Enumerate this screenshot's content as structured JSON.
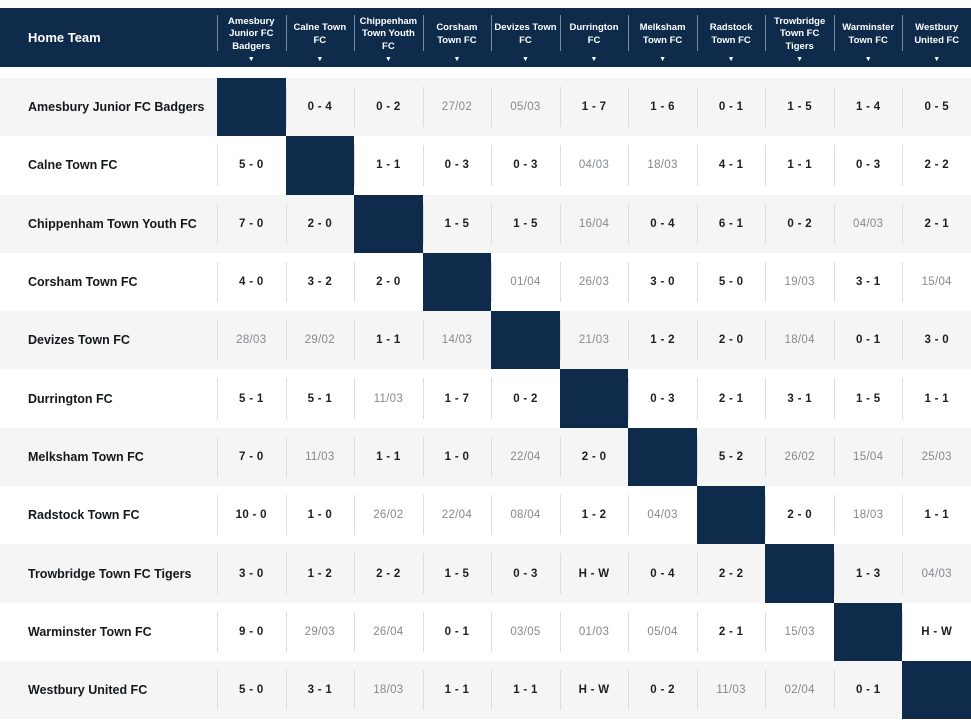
{
  "colors": {
    "header_bg": "#0e2b4c",
    "diagonal_bg": "#0e2b4c",
    "row_alt_bg": "#f5f5f5",
    "score_text": "#1d2023",
    "date_text": "#85898d"
  },
  "header": {
    "home_team_label": "Home Team",
    "sort_icon": "▼",
    "columns": [
      "Amesbury Junior FC Badgers",
      "Calne Town FC",
      "Chippenham Town Youth FC",
      "Corsham Town FC",
      "Devizes Town FC",
      "Durrington FC",
      "Melksham Town FC",
      "Radstock Town FC",
      "Trowbridge Town FC Tigers",
      "Warminster Town FC",
      "Westbury United FC"
    ]
  },
  "rows": [
    {
      "team": "Amesbury Junior FC Badgers",
      "cells": [
        {
          "type": "self",
          "value": ""
        },
        {
          "type": "score",
          "value": "0 - 4"
        },
        {
          "type": "score",
          "value": "0 - 2"
        },
        {
          "type": "date",
          "value": "27/02"
        },
        {
          "type": "date",
          "value": "05/03"
        },
        {
          "type": "score",
          "value": "1 - 7"
        },
        {
          "type": "score",
          "value": "1 - 6"
        },
        {
          "type": "score",
          "value": "0 - 1"
        },
        {
          "type": "score",
          "value": "1 - 5"
        },
        {
          "type": "score",
          "value": "1 - 4"
        },
        {
          "type": "score",
          "value": "0 - 5"
        }
      ]
    },
    {
      "team": "Calne Town FC",
      "cells": [
        {
          "type": "score",
          "value": "5 - 0"
        },
        {
          "type": "self",
          "value": ""
        },
        {
          "type": "score",
          "value": "1 - 1"
        },
        {
          "type": "score",
          "value": "0 - 3"
        },
        {
          "type": "score",
          "value": "0 - 3"
        },
        {
          "type": "date",
          "value": "04/03"
        },
        {
          "type": "date",
          "value": "18/03"
        },
        {
          "type": "score",
          "value": "4 - 1"
        },
        {
          "type": "score",
          "value": "1 - 1"
        },
        {
          "type": "score",
          "value": "0 - 3"
        },
        {
          "type": "score",
          "value": "2 - 2"
        }
      ]
    },
    {
      "team": "Chippenham Town Youth FC",
      "cells": [
        {
          "type": "score",
          "value": "7 - 0"
        },
        {
          "type": "score",
          "value": "2 - 0"
        },
        {
          "type": "self",
          "value": ""
        },
        {
          "type": "score",
          "value": "1 - 5"
        },
        {
          "type": "score",
          "value": "1 - 5"
        },
        {
          "type": "date",
          "value": "16/04"
        },
        {
          "type": "score",
          "value": "0 - 4"
        },
        {
          "type": "score",
          "value": "6 - 1"
        },
        {
          "type": "score",
          "value": "0 - 2"
        },
        {
          "type": "date",
          "value": "04/03"
        },
        {
          "type": "score",
          "value": "2 - 1"
        }
      ]
    },
    {
      "team": "Corsham Town FC",
      "cells": [
        {
          "type": "score",
          "value": "4 - 0"
        },
        {
          "type": "score",
          "value": "3 - 2"
        },
        {
          "type": "score",
          "value": "2 - 0"
        },
        {
          "type": "self",
          "value": ""
        },
        {
          "type": "date",
          "value": "01/04"
        },
        {
          "type": "date",
          "value": "26/03"
        },
        {
          "type": "score",
          "value": "3 - 0"
        },
        {
          "type": "score",
          "value": "5 - 0"
        },
        {
          "type": "date",
          "value": "19/03"
        },
        {
          "type": "score",
          "value": "3 - 1"
        },
        {
          "type": "date",
          "value": "15/04"
        }
      ]
    },
    {
      "team": "Devizes Town FC",
      "cells": [
        {
          "type": "date",
          "value": "28/03"
        },
        {
          "type": "date",
          "value": "29/02"
        },
        {
          "type": "score",
          "value": "1 - 1"
        },
        {
          "type": "date",
          "value": "14/03"
        },
        {
          "type": "self",
          "value": ""
        },
        {
          "type": "date",
          "value": "21/03"
        },
        {
          "type": "score",
          "value": "1 - 2"
        },
        {
          "type": "score",
          "value": "2 - 0"
        },
        {
          "type": "date",
          "value": "18/04"
        },
        {
          "type": "score",
          "value": "0 - 1"
        },
        {
          "type": "score",
          "value": "3 - 0"
        }
      ]
    },
    {
      "team": "Durrington FC",
      "cells": [
        {
          "type": "score",
          "value": "5 - 1"
        },
        {
          "type": "score",
          "value": "5 - 1"
        },
        {
          "type": "date",
          "value": "11/03"
        },
        {
          "type": "score",
          "value": "1 - 7"
        },
        {
          "type": "score",
          "value": "0 - 2"
        },
        {
          "type": "self",
          "value": ""
        },
        {
          "type": "score",
          "value": "0 - 3"
        },
        {
          "type": "score",
          "value": "2 - 1"
        },
        {
          "type": "score",
          "value": "3 - 1"
        },
        {
          "type": "score",
          "value": "1 - 5"
        },
        {
          "type": "score",
          "value": "1 - 1"
        }
      ]
    },
    {
      "team": "Melksham Town FC",
      "cells": [
        {
          "type": "score",
          "value": "7 - 0"
        },
        {
          "type": "date",
          "value": "11/03"
        },
        {
          "type": "score",
          "value": "1 - 1"
        },
        {
          "type": "score",
          "value": "1 - 0"
        },
        {
          "type": "date",
          "value": "22/04"
        },
        {
          "type": "score",
          "value": "2 - 0"
        },
        {
          "type": "self",
          "value": ""
        },
        {
          "type": "score",
          "value": "5 - 2"
        },
        {
          "type": "date",
          "value": "26/02"
        },
        {
          "type": "date",
          "value": "15/04"
        },
        {
          "type": "date",
          "value": "25/03"
        }
      ]
    },
    {
      "team": "Radstock Town FC",
      "cells": [
        {
          "type": "score",
          "value": "10 - 0"
        },
        {
          "type": "score",
          "value": "1 - 0"
        },
        {
          "type": "date",
          "value": "26/02"
        },
        {
          "type": "date",
          "value": "22/04"
        },
        {
          "type": "date",
          "value": "08/04"
        },
        {
          "type": "score",
          "value": "1 - 2"
        },
        {
          "type": "date",
          "value": "04/03"
        },
        {
          "type": "self",
          "value": ""
        },
        {
          "type": "score",
          "value": "2 - 0"
        },
        {
          "type": "date",
          "value": "18/03"
        },
        {
          "type": "score",
          "value": "1 - 1"
        }
      ]
    },
    {
      "team": "Trowbridge Town FC Tigers",
      "cells": [
        {
          "type": "score",
          "value": "3 - 0"
        },
        {
          "type": "score",
          "value": "1 - 2"
        },
        {
          "type": "score",
          "value": "2 - 2"
        },
        {
          "type": "score",
          "value": "1 - 5"
        },
        {
          "type": "score",
          "value": "0 - 3"
        },
        {
          "type": "score",
          "value": "H - W"
        },
        {
          "type": "score",
          "value": "0 - 4"
        },
        {
          "type": "score",
          "value": "2 - 2"
        },
        {
          "type": "self",
          "value": ""
        },
        {
          "type": "score",
          "value": "1 - 3"
        },
        {
          "type": "date",
          "value": "04/03"
        }
      ]
    },
    {
      "team": "Warminster Town FC",
      "cells": [
        {
          "type": "score",
          "value": "9 - 0"
        },
        {
          "type": "date",
          "value": "29/03"
        },
        {
          "type": "date",
          "value": "26/04"
        },
        {
          "type": "score",
          "value": "0 - 1"
        },
        {
          "type": "date",
          "value": "03/05"
        },
        {
          "type": "date",
          "value": "01/03"
        },
        {
          "type": "date",
          "value": "05/04"
        },
        {
          "type": "score",
          "value": "2 - 1"
        },
        {
          "type": "date",
          "value": "15/03"
        },
        {
          "type": "self",
          "value": ""
        },
        {
          "type": "score",
          "value": "H - W"
        }
      ]
    },
    {
      "team": "Westbury United FC",
      "cells": [
        {
          "type": "score",
          "value": "5 - 0"
        },
        {
          "type": "score",
          "value": "3 - 1"
        },
        {
          "type": "date",
          "value": "18/03"
        },
        {
          "type": "score",
          "value": "1 - 1"
        },
        {
          "type": "score",
          "value": "1 - 1"
        },
        {
          "type": "score",
          "value": "H - W"
        },
        {
          "type": "score",
          "value": "0 - 2"
        },
        {
          "type": "date",
          "value": "11/03"
        },
        {
          "type": "date",
          "value": "02/04"
        },
        {
          "type": "score",
          "value": "0 - 1"
        },
        {
          "type": "self",
          "value": ""
        }
      ]
    }
  ]
}
